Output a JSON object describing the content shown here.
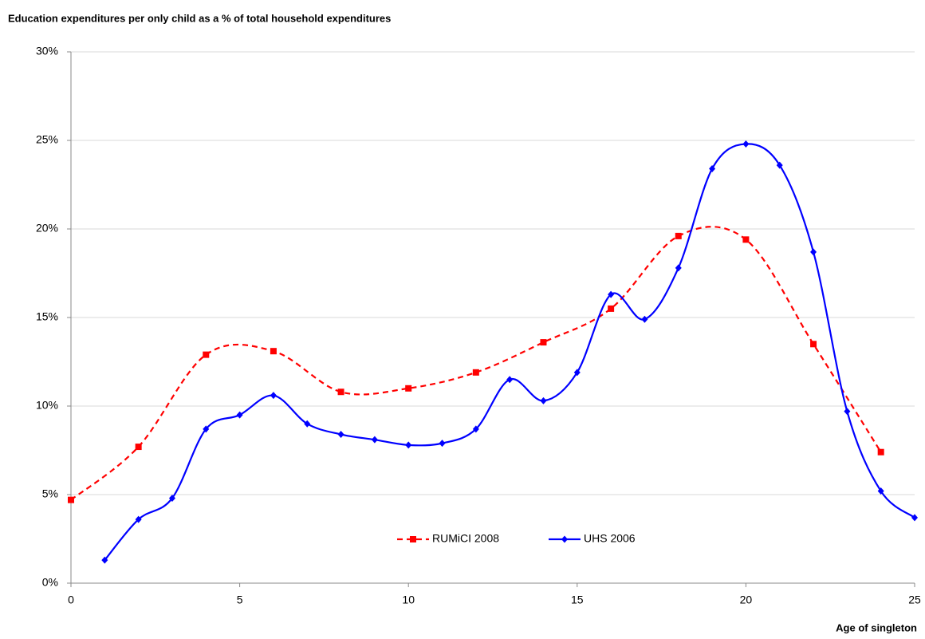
{
  "chart_data": {
    "type": "line",
    "title": "Education expenditures per only child as a % of total  household expenditures",
    "x_label": "Age of singleton",
    "xlim": [
      0,
      25
    ],
    "xticks": [
      0,
      5,
      10,
      15,
      20,
      25
    ],
    "ylim": [
      0,
      30
    ],
    "yticks": [
      {
        "value": 0,
        "label": "0%"
      },
      {
        "value": 5,
        "label": "5%"
      },
      {
        "value": 10,
        "label": "10%"
      },
      {
        "value": 15,
        "label": "15%"
      },
      {
        "value": 20,
        "label": "20%"
      },
      {
        "value": 25,
        "label": "25%"
      },
      {
        "value": 30,
        "label": "30%"
      }
    ],
    "grid": true,
    "legend": "bottom",
    "series": [
      {
        "name": "RUMiCI 2008",
        "color": "#ff0000",
        "dashed": true,
        "marker": "square",
        "x": [
          0,
          2,
          4,
          6,
          8,
          10,
          12,
          14,
          16,
          18,
          20,
          22,
          24
        ],
        "values": [
          4.7,
          7.7,
          12.9,
          13.1,
          10.8,
          11.0,
          11.9,
          13.6,
          15.5,
          19.6,
          19.4,
          13.5,
          7.4
        ]
      },
      {
        "name": "UHS 2006",
        "color": "#0000ff",
        "dashed": false,
        "marker": "diamond",
        "x": [
          1,
          2,
          3,
          4,
          5,
          6,
          7,
          8,
          9,
          10,
          11,
          12,
          13,
          14,
          15,
          16,
          17,
          18,
          19,
          20,
          21,
          22,
          23,
          24,
          25
        ],
        "values": [
          1.3,
          3.6,
          4.8,
          8.7,
          9.5,
          10.6,
          9.0,
          8.4,
          8.1,
          7.8,
          7.9,
          8.7,
          11.5,
          10.3,
          11.9,
          16.3,
          14.9,
          17.8,
          23.4,
          24.8,
          23.6,
          18.7,
          9.7,
          5.2,
          3.7
        ]
      }
    ]
  }
}
